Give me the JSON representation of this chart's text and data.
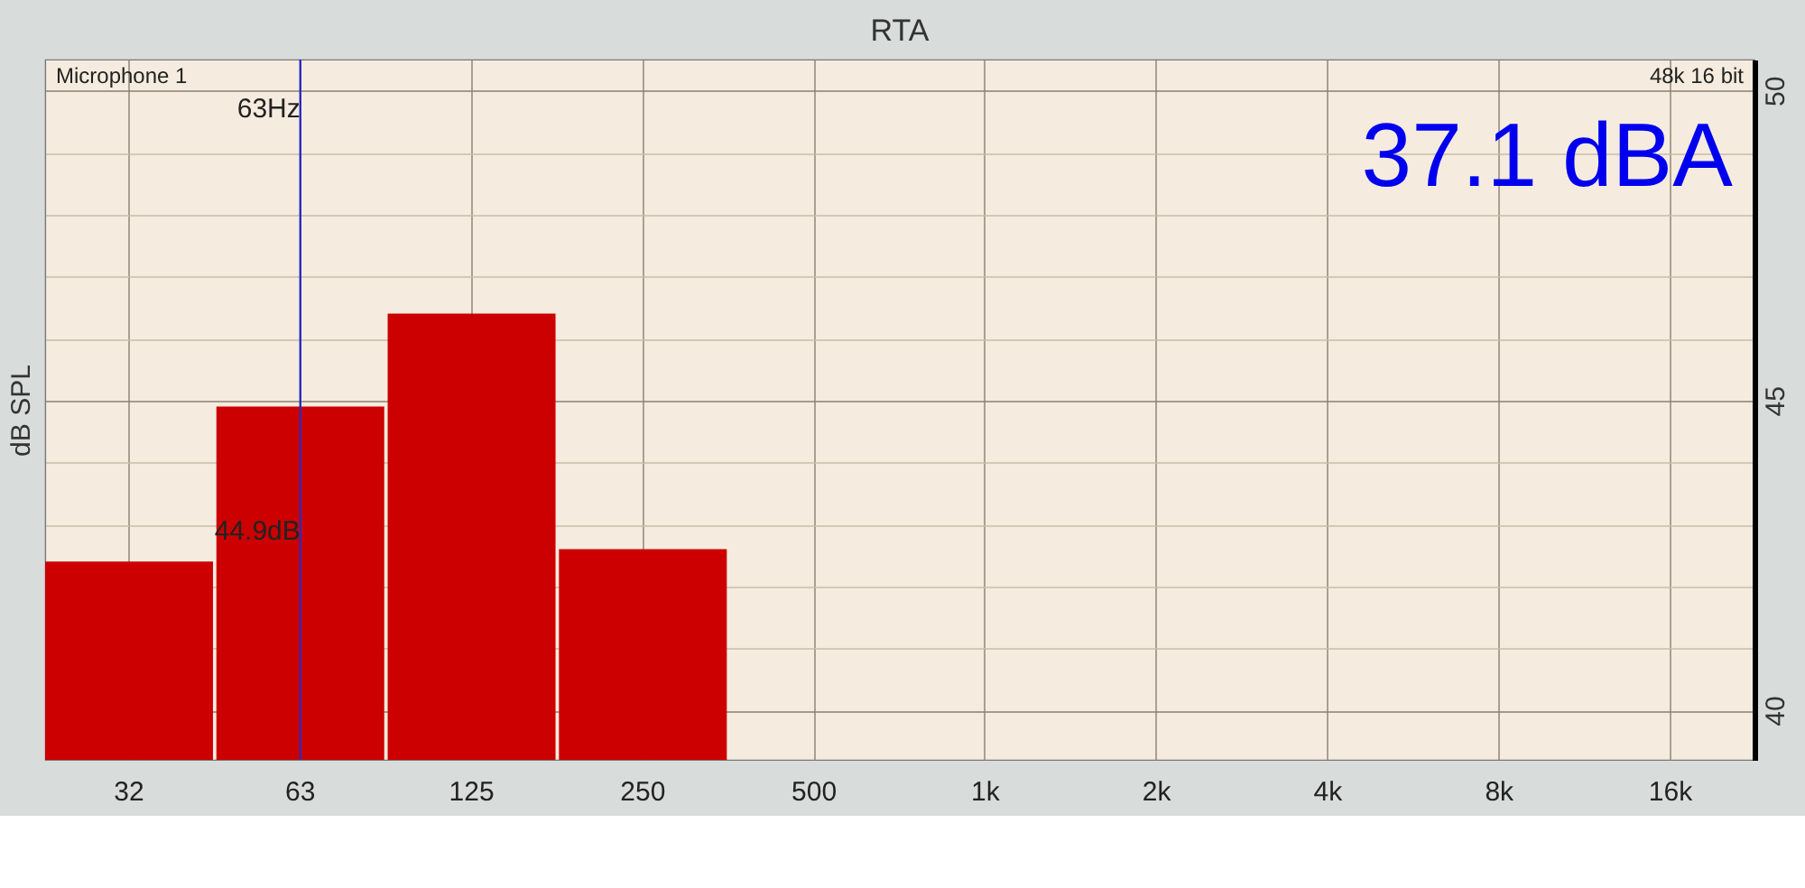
{
  "chart_data": {
    "type": "bar",
    "title": "RTA",
    "ylabel": "dB SPL",
    "categories": [
      "32",
      "63",
      "125",
      "250",
      "500",
      "1k",
      "2k",
      "4k",
      "8k",
      "16k"
    ],
    "values": [
      42.4,
      44.9,
      46.4,
      42.6,
      null,
      null,
      null,
      null,
      null,
      null
    ],
    "color": "#cc0000",
    "ylim": [
      39.2,
      50.5
    ],
    "yticks": [
      40,
      {
        "value": 41,
        "label": null
      },
      {
        "value": 42,
        "label": null
      },
      {
        "value": 43,
        "label": null
      },
      {
        "value": 44,
        "label": null
      },
      45,
      {
        "value": 46,
        "label": null
      },
      {
        "value": 47,
        "label": null
      },
      {
        "value": 48,
        "label": null
      },
      {
        "value": 49,
        "label": null
      },
      50
    ],
    "grid": true,
    "ref_lines": [
      {
        "axis": "x",
        "value": "63",
        "label": "63Hz",
        "color": "#2a2ac0"
      }
    ],
    "annotations": [
      "Microphone 1",
      "48k 16 bit",
      "37.1 dBA",
      {
        "text": "44.9dB",
        "x": "63",
        "y": 42.9
      }
    ]
  }
}
